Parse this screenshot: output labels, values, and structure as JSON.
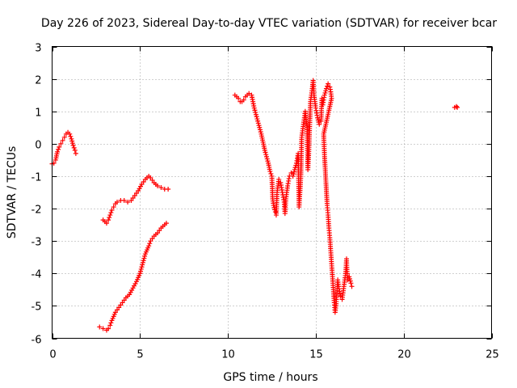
{
  "chart_data": {
    "type": "scatter",
    "title": "Day 226 of 2023, Sidereal Day-to-day VTEC variation (SDTVAR) for receiver bcar",
    "xlabel": "GPS time / hours",
    "ylabel": "SDTVAR / TECUs",
    "xlim": [
      0,
      25
    ],
    "ylim": [
      -6,
      3
    ],
    "xticks": [
      0,
      5,
      10,
      15,
      20,
      25
    ],
    "yticks": [
      -6,
      -5,
      -4,
      -3,
      -2,
      -1,
      0,
      1,
      2,
      3
    ],
    "grid": true,
    "marker": "+",
    "color": "#ff0000",
    "series": [
      {
        "name": "arc-1",
        "points": [
          [
            0.0,
            -0.62
          ],
          [
            0.1,
            -0.6
          ],
          [
            0.2,
            -0.5
          ],
          [
            0.3,
            -0.25
          ],
          [
            0.4,
            -0.1
          ],
          [
            0.5,
            0.0
          ],
          [
            0.6,
            0.1
          ],
          [
            0.7,
            0.2
          ],
          [
            0.8,
            0.3
          ],
          [
            0.9,
            0.35
          ],
          [
            1.0,
            0.3
          ],
          [
            1.1,
            0.15
          ],
          [
            1.2,
            -0.05
          ],
          [
            1.3,
            -0.2
          ],
          [
            1.35,
            -0.3
          ]
        ]
      },
      {
        "name": "arc-2",
        "points": [
          [
            2.9,
            -2.35
          ],
          [
            3.0,
            -2.4
          ],
          [
            3.1,
            -2.45
          ],
          [
            3.2,
            -2.35
          ],
          [
            3.3,
            -2.2
          ],
          [
            3.4,
            -2.05
          ],
          [
            3.5,
            -1.95
          ],
          [
            3.6,
            -1.85
          ],
          [
            3.7,
            -1.8
          ],
          [
            3.9,
            -1.75
          ],
          [
            4.1,
            -1.75
          ],
          [
            4.3,
            -1.8
          ],
          [
            4.5,
            -1.75
          ],
          [
            4.7,
            -1.6
          ],
          [
            4.9,
            -1.45
          ],
          [
            5.1,
            -1.25
          ],
          [
            5.3,
            -1.1
          ],
          [
            5.5,
            -1.0
          ],
          [
            5.6,
            -1.05
          ],
          [
            5.8,
            -1.2
          ],
          [
            6.0,
            -1.3
          ],
          [
            6.2,
            -1.35
          ],
          [
            6.4,
            -1.4
          ],
          [
            6.6,
            -1.4
          ]
        ]
      },
      {
        "name": "arc-3",
        "points": [
          [
            2.7,
            -5.65
          ],
          [
            2.9,
            -5.7
          ],
          [
            3.1,
            -5.75
          ],
          [
            3.2,
            -5.7
          ],
          [
            3.3,
            -5.6
          ],
          [
            3.4,
            -5.45
          ],
          [
            3.6,
            -5.2
          ],
          [
            3.8,
            -5.05
          ],
          [
            4.0,
            -4.9
          ],
          [
            4.2,
            -4.75
          ],
          [
            4.4,
            -4.65
          ],
          [
            4.6,
            -4.45
          ],
          [
            4.8,
            -4.25
          ],
          [
            5.0,
            -4.0
          ],
          [
            5.1,
            -3.8
          ],
          [
            5.2,
            -3.6
          ],
          [
            5.3,
            -3.4
          ],
          [
            5.5,
            -3.15
          ],
          [
            5.6,
            -3.0
          ],
          [
            5.8,
            -2.85
          ],
          [
            6.0,
            -2.75
          ],
          [
            6.2,
            -2.6
          ],
          [
            6.4,
            -2.5
          ],
          [
            6.5,
            -2.45
          ]
        ]
      },
      {
        "name": "arc-4",
        "points": [
          [
            10.4,
            1.5
          ],
          [
            10.5,
            1.45
          ],
          [
            10.6,
            1.4
          ],
          [
            10.7,
            1.3
          ],
          [
            10.8,
            1.3
          ],
          [
            10.9,
            1.35
          ],
          [
            11.0,
            1.45
          ],
          [
            11.1,
            1.5
          ],
          [
            11.2,
            1.55
          ],
          [
            11.35,
            1.5
          ],
          [
            11.5,
            1.1
          ],
          [
            11.6,
            0.9
          ],
          [
            11.7,
            0.7
          ],
          [
            11.8,
            0.5
          ],
          [
            11.9,
            0.3
          ],
          [
            12.0,
            0.05
          ],
          [
            12.1,
            -0.2
          ],
          [
            12.2,
            -0.4
          ],
          [
            12.3,
            -0.6
          ],
          [
            12.4,
            -0.85
          ],
          [
            12.5,
            -1.0
          ],
          [
            12.55,
            -1.7
          ],
          [
            12.6,
            -1.9
          ],
          [
            12.7,
            -2.1
          ],
          [
            12.75,
            -2.2
          ],
          [
            12.8,
            -1.5
          ],
          [
            12.9,
            -1.1
          ],
          [
            13.0,
            -1.2
          ],
          [
            13.1,
            -1.5
          ],
          [
            13.2,
            -1.8
          ],
          [
            13.25,
            -2.15
          ],
          [
            13.3,
            -1.7
          ],
          [
            13.4,
            -1.3
          ],
          [
            13.5,
            -1.0
          ],
          [
            13.6,
            -0.9
          ],
          [
            13.7,
            -1.0
          ],
          [
            13.8,
            -0.8
          ],
          [
            13.9,
            -0.6
          ],
          [
            14.0,
            -0.3
          ],
          [
            14.05,
            -1.95
          ],
          [
            14.1,
            -1.5
          ],
          [
            14.15,
            -1.0
          ],
          [
            14.2,
            0.2
          ],
          [
            14.3,
            0.6
          ],
          [
            14.4,
            1.0
          ],
          [
            14.5,
            0.5
          ],
          [
            14.55,
            -0.8
          ],
          [
            14.6,
            -0.3
          ],
          [
            14.7,
            1.3
          ],
          [
            14.8,
            1.7
          ],
          [
            14.85,
            1.95
          ],
          [
            14.9,
            1.5
          ],
          [
            15.0,
            1.1
          ],
          [
            15.1,
            0.8
          ],
          [
            15.2,
            0.6
          ],
          [
            15.3,
            0.7
          ],
          [
            15.35,
            1.4
          ],
          [
            15.4,
            1.2
          ],
          [
            15.5,
            1.5
          ],
          [
            15.6,
            1.7
          ],
          [
            15.7,
            1.85
          ],
          [
            15.8,
            1.75
          ],
          [
            15.85,
            1.6
          ],
          [
            15.9,
            1.4
          ],
          [
            15.45,
            0.3
          ],
          [
            15.5,
            -0.4
          ],
          [
            15.55,
            -0.9
          ],
          [
            15.6,
            -1.4
          ],
          [
            15.65,
            -1.9
          ],
          [
            15.7,
            -2.2
          ],
          [
            15.75,
            -2.6
          ],
          [
            15.8,
            -2.9
          ],
          [
            15.85,
            -3.3
          ],
          [
            15.9,
            -3.7
          ],
          [
            15.95,
            -4.1
          ],
          [
            16.0,
            -4.5
          ],
          [
            16.05,
            -4.9
          ],
          [
            16.1,
            -5.2
          ],
          [
            16.15,
            -5.0
          ],
          [
            16.2,
            -4.6
          ],
          [
            16.25,
            -4.2
          ],
          [
            16.3,
            -4.4
          ],
          [
            16.4,
            -4.7
          ],
          [
            16.5,
            -4.8
          ],
          [
            16.6,
            -4.4
          ],
          [
            16.7,
            -4.0
          ],
          [
            16.75,
            -3.55
          ],
          [
            16.8,
            -4.2
          ],
          [
            16.9,
            -4.1
          ],
          [
            17.0,
            -4.3
          ],
          [
            17.05,
            -4.4
          ]
        ]
      },
      {
        "name": "arc-5",
        "points": [
          [
            22.9,
            1.12
          ],
          [
            23.0,
            1.15
          ],
          [
            23.05,
            1.12
          ]
        ]
      }
    ]
  }
}
